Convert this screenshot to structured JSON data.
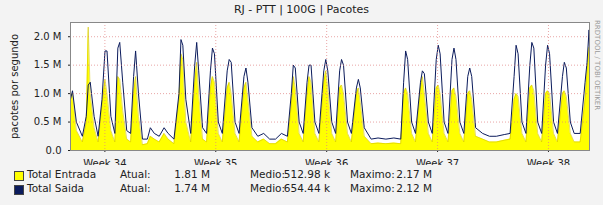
{
  "chart_data": {
    "type": "area",
    "title": "RJ - PTT | 100G | Pacotes",
    "y_label": "pacotes por segundo",
    "annotation": "RRDTOOL / TOBI OETIKER",
    "x": [
      33.69,
      33.708,
      33.743,
      33.797,
      33.832,
      33.85,
      33.868,
      33.903,
      33.939,
      33.974,
      34.001,
      34.019,
      34.054,
      34.09,
      34.117,
      34.134,
      34.161,
      34.197,
      34.232,
      34.259,
      34.277,
      34.303,
      34.339,
      34.383,
      34.41,
      34.446,
      34.49,
      34.534,
      34.57,
      34.623,
      34.668,
      34.686,
      34.703,
      34.73,
      34.774,
      34.81,
      34.828,
      34.846,
      34.881,
      34.917,
      34.952,
      34.97,
      34.988,
      35.023,
      35.059,
      35.103,
      35.121,
      35.139,
      35.174,
      35.21,
      35.254,
      35.272,
      35.29,
      35.326,
      35.379,
      35.432,
      35.486,
      35.539,
      35.592,
      35.646,
      35.681,
      35.699,
      35.717,
      35.752,
      35.788,
      35.823,
      35.841,
      35.859,
      35.894,
      35.93,
      35.974,
      35.992,
      36.01,
      36.046,
      36.081,
      36.117,
      36.134,
      36.152,
      36.188,
      36.223,
      36.268,
      36.286,
      36.303,
      36.339,
      36.401,
      36.463,
      36.534,
      36.606,
      36.668,
      36.694,
      36.712,
      36.73,
      36.766,
      36.801,
      36.846,
      36.863,
      36.881,
      36.917,
      36.952,
      36.988,
      37.006,
      37.023,
      37.059,
      37.094,
      37.13,
      37.148,
      37.166,
      37.201,
      37.237,
      37.272,
      37.29,
      37.308,
      37.343,
      37.406,
      37.468,
      37.53,
      37.601,
      37.654,
      37.69,
      37.708,
      37.726,
      37.761,
      37.797,
      37.832,
      37.85,
      37.868,
      37.903,
      37.939,
      37.974,
      37.992,
      38.01,
      38.046,
      38.081,
      38.126,
      38.143,
      38.161,
      38.197,
      38.232,
      38.286,
      38.33,
      38.348,
      38.366,
      38.37
    ],
    "series": [
      {
        "name": "Total Entrada",
        "type": "area",
        "color": "#ffff00",
        "stats": [
          {
            "label": "Atual:",
            "value_label": "1.81 M"
          },
          {
            "label": "Medio:",
            "value_label": "512.98 k"
          },
          {
            "label": "Maximo:",
            "value_label": "2.17 M"
          }
        ],
        "values": [
          950000,
          1000000,
          350000,
          150000,
          500000,
          2170000,
          1000000,
          400000,
          150000,
          800000,
          1250000,
          1000000,
          350000,
          150000,
          1300000,
          1250000,
          700000,
          200000,
          150000,
          1000000,
          1300000,
          600000,
          100000,
          120000,
          250000,
          200000,
          150000,
          300000,
          200000,
          120000,
          900000,
          1700000,
          1600000,
          500000,
          150000,
          1200000,
          1550000,
          1000000,
          200000,
          150000,
          1100000,
          1300000,
          1200000,
          300000,
          150000,
          1100000,
          1200000,
          1000000,
          300000,
          150000,
          1100000,
          1200000,
          900000,
          250000,
          150000,
          200000,
          120000,
          120000,
          200000,
          150000,
          800000,
          1300000,
          1100000,
          300000,
          150000,
          1000000,
          1300000,
          1200000,
          300000,
          150000,
          1200000,
          1400000,
          1100000,
          300000,
          150000,
          1100000,
          1150000,
          1000000,
          300000,
          150000,
          1000000,
          1100000,
          850000,
          250000,
          120000,
          130000,
          120000,
          130000,
          120000,
          1000000,
          1100000,
          1000000,
          300000,
          150000,
          1100000,
          1300000,
          1000000,
          300000,
          150000,
          1100000,
          1150000,
          1000000,
          300000,
          150000,
          1050000,
          1100000,
          950000,
          300000,
          150000,
          1000000,
          1050000,
          900000,
          250000,
          200000,
          150000,
          150000,
          180000,
          200000,
          900000,
          1000000,
          950000,
          300000,
          150000,
          1100000,
          1150000,
          1050000,
          300000,
          150000,
          1000000,
          1050000,
          1000000,
          300000,
          150000,
          1000000,
          1050000,
          950000,
          300000,
          150000,
          150000,
          900000,
          1400000,
          1810000,
          1810000
        ]
      },
      {
        "name": "Total Saida",
        "type": "line",
        "color": "#0b1b5c",
        "stats": [
          {
            "label": "Atual:",
            "value_label": "1.74 M"
          },
          {
            "label": "Medio:",
            "value_label": "654.44 k"
          },
          {
            "label": "Maximo:",
            "value_label": "2.12 M"
          }
        ],
        "values": [
          900000,
          1050000,
          500000,
          250000,
          600000,
          1150000,
          1200000,
          600000,
          250000,
          900000,
          1750000,
          1750000,
          600000,
          300000,
          1800000,
          1900000,
          1200000,
          350000,
          300000,
          1300000,
          1750000,
          1000000,
          200000,
          200000,
          400000,
          300000,
          250000,
          400000,
          300000,
          200000,
          1000000,
          1950000,
          1850000,
          900000,
          300000,
          1500000,
          1900000,
          1400000,
          400000,
          300000,
          1400000,
          1800000,
          1700000,
          500000,
          300000,
          1400000,
          1600000,
          1550000,
          500000,
          300000,
          1300000,
          1450000,
          1200000,
          400000,
          250000,
          300000,
          200000,
          200000,
          300000,
          250000,
          1000000,
          1500000,
          1450000,
          500000,
          300000,
          1200000,
          1500000,
          1500000,
          500000,
          300000,
          1400000,
          1600000,
          1400000,
          500000,
          300000,
          1400000,
          1600000,
          1500000,
          500000,
          300000,
          1100000,
          1250000,
          1100000,
          400000,
          200000,
          220000,
          200000,
          220000,
          200000,
          1200000,
          1750000,
          1600000,
          500000,
          300000,
          1200000,
          1400000,
          1350000,
          500000,
          300000,
          1600000,
          1850000,
          1700000,
          500000,
          300000,
          1600000,
          1800000,
          1600000,
          500000,
          300000,
          1300000,
          1450000,
          1300000,
          400000,
          300000,
          250000,
          250000,
          280000,
          300000,
          1300000,
          1850000,
          1700000,
          500000,
          300000,
          1500000,
          1900000,
          1800000,
          500000,
          300000,
          1500000,
          1850000,
          1700000,
          500000,
          300000,
          1300000,
          1550000,
          1450000,
          500000,
          300000,
          300000,
          1200000,
          1550000,
          2120000,
          1740000
        ]
      }
    ],
    "xlim": [
      33.69,
      38.37
    ],
    "xticks": [
      {
        "value": 34,
        "label": "Week 34"
      },
      {
        "value": 35,
        "label": "Week 35"
      },
      {
        "value": 36,
        "label": "Week 36"
      },
      {
        "value": 37,
        "label": "Week 37"
      },
      {
        "value": 38,
        "label": "Week 38"
      }
    ],
    "ylim": [
      0,
      2250000
    ],
    "yticks": [
      {
        "value": 0,
        "label": "0.0"
      },
      {
        "value": 500000,
        "label": "0.5 M"
      },
      {
        "value": 1000000,
        "label": "1.0 M"
      },
      {
        "value": 1500000,
        "label": "1.5 M"
      },
      {
        "value": 2000000,
        "label": "2.0 M"
      }
    ],
    "grid": true,
    "legend": "bottom"
  }
}
